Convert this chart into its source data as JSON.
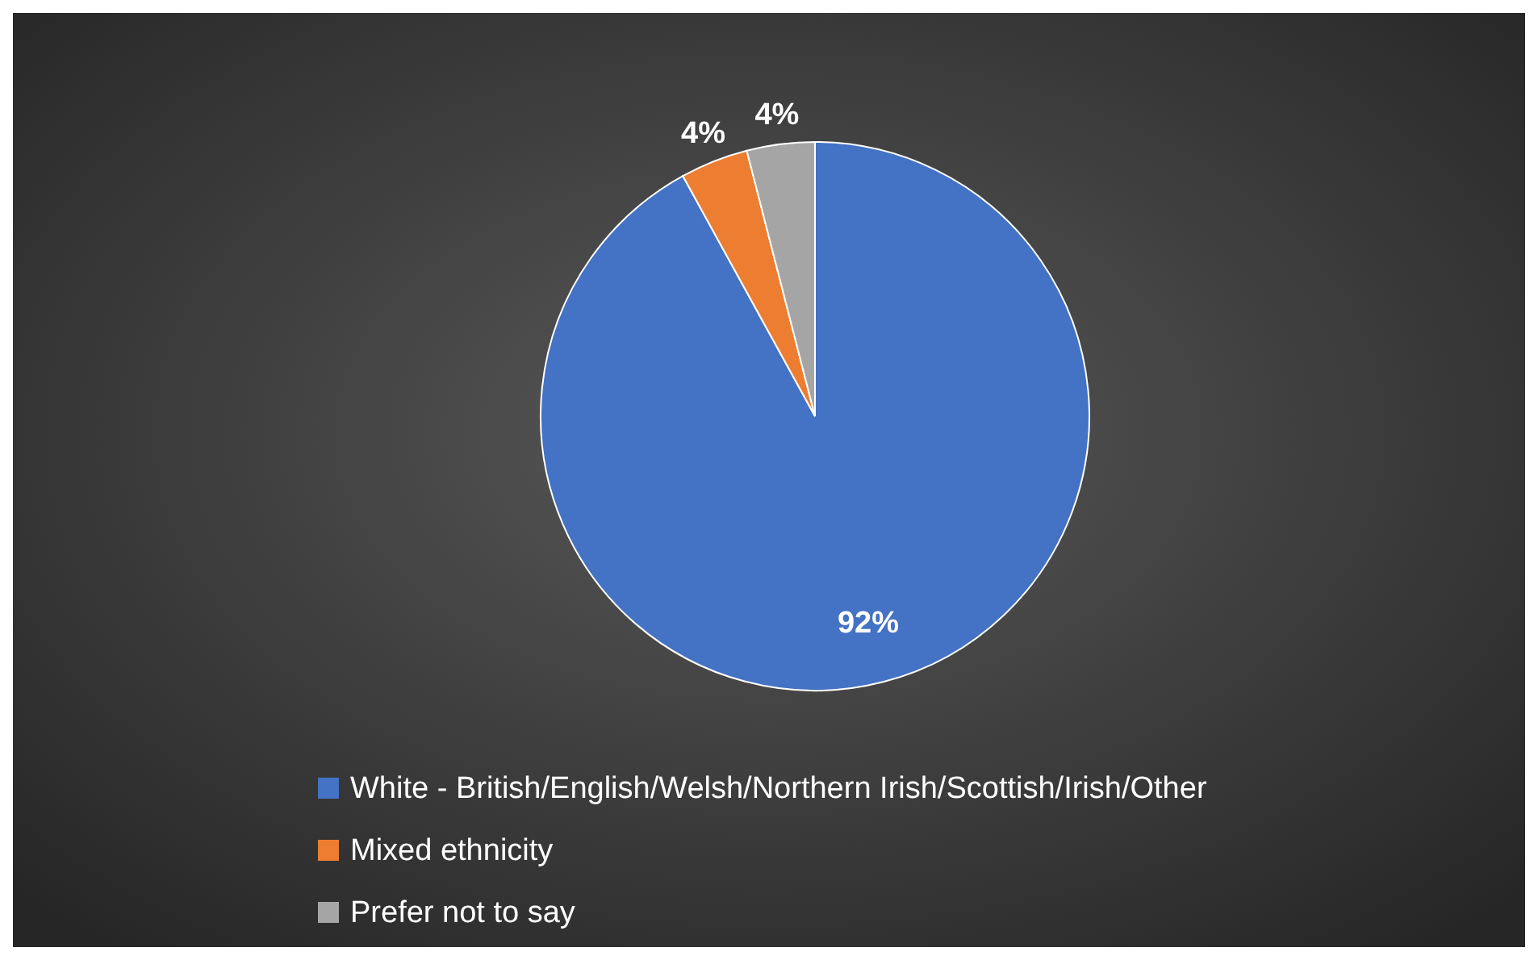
{
  "chart_data": {
    "type": "pie",
    "categories": [
      "White - British/English/Welsh/Northern Irish/Scottish/Irish/Other",
      "Mixed ethnicity",
      "Prefer not to say"
    ],
    "values": [
      92,
      4,
      4
    ],
    "colors": [
      "#4472c4",
      "#ed7d31",
      "#a5a5a5"
    ],
    "value_labels": [
      "92%",
      "4%",
      "4%"
    ],
    "legend": "bottom"
  }
}
